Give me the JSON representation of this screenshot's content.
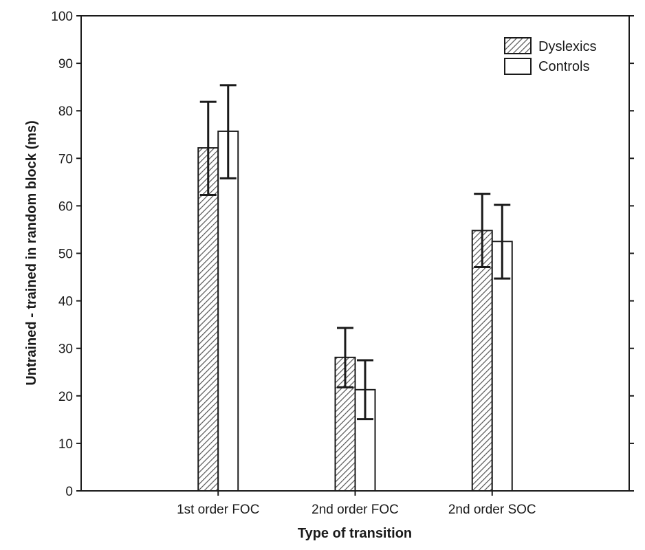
{
  "chart_data": {
    "type": "bar",
    "title": "",
    "xlabel": "Type of transition",
    "ylabel": "Untrained - trained in random block (ms)",
    "ylim": [
      0,
      100
    ],
    "yticks": [
      0,
      10,
      20,
      30,
      40,
      50,
      60,
      70,
      80,
      90,
      100
    ],
    "categories": [
      "1st order FOC",
      "2nd order FOC",
      "2nd order SOC"
    ],
    "series": [
      {
        "name": "Dyslexics",
        "pattern": "hatched",
        "values": [
          72.2,
          28.1,
          54.8
        ],
        "error_low": [
          62.3,
          21.8,
          47.1
        ],
        "error_high": [
          81.9,
          34.3,
          62.5
        ]
      },
      {
        "name": "Controls",
        "pattern": "open",
        "values": [
          75.7,
          21.3,
          52.5
        ],
        "error_low": [
          65.8,
          15.1,
          44.7
        ],
        "error_high": [
          85.4,
          27.5,
          60.2
        ]
      }
    ],
    "legend": {
      "position": "top-right",
      "items": [
        "Dyslexics",
        "Controls"
      ]
    },
    "grid": false,
    "colors": {
      "bar_fill_open": "#ffffff",
      "bar_stroke": "#1a1a1a",
      "hatch": "#555555"
    }
  }
}
